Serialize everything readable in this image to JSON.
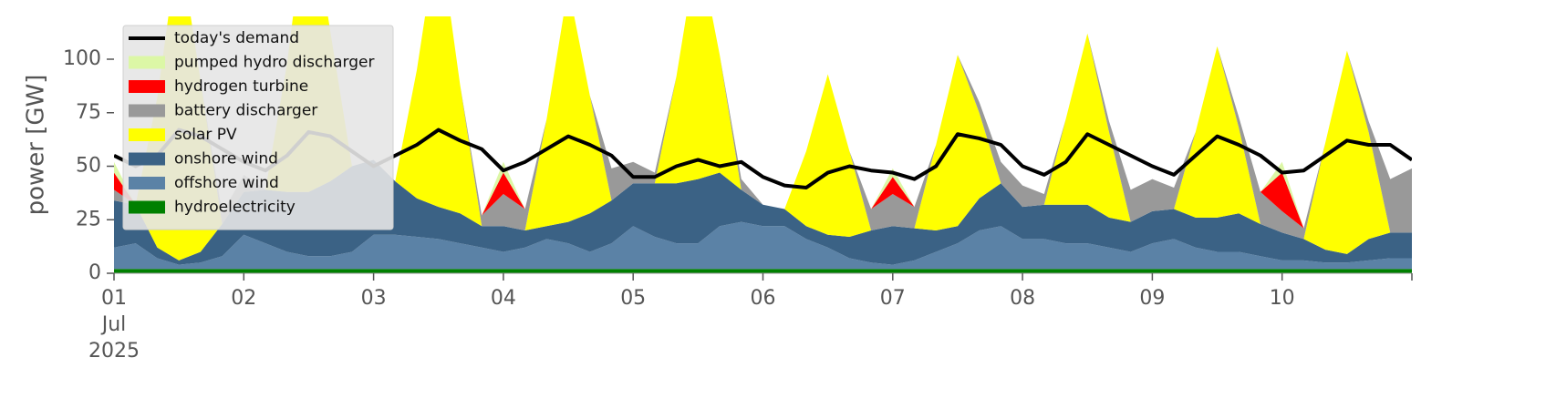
{
  "chart_data": {
    "type": "area",
    "ylabel": "power [GW]",
    "x": [
      0,
      4,
      8,
      12,
      16,
      20,
      24,
      28,
      32,
      36,
      40,
      44,
      48,
      52,
      56,
      60,
      64,
      68,
      72,
      76,
      80,
      84,
      88,
      92,
      96,
      100,
      104,
      108,
      112,
      116,
      120,
      124,
      128,
      132,
      136,
      140,
      144,
      148,
      152,
      156,
      160,
      164,
      168,
      172,
      176,
      180,
      184,
      188,
      192,
      196,
      200,
      204,
      208,
      212,
      216,
      220,
      224,
      228,
      232,
      236,
      240
    ],
    "xlim": [
      0,
      240
    ],
    "xticks": [
      {
        "value": 0,
        "label": "01\nJul\n2025"
      },
      {
        "value": 24,
        "label": "02"
      },
      {
        "value": 48,
        "label": "03"
      },
      {
        "value": 72,
        "label": "04"
      },
      {
        "value": 96,
        "label": "05"
      },
      {
        "value": 120,
        "label": "06"
      },
      {
        "value": 144,
        "label": "07"
      },
      {
        "value": 168,
        "label": "08"
      },
      {
        "value": 192,
        "label": "09"
      },
      {
        "value": 216,
        "label": "10"
      },
      {
        "value": 240,
        "label": ""
      }
    ],
    "ylim": [
      0,
      120
    ],
    "yticks": [
      0,
      25,
      50,
      75,
      100
    ],
    "legend": "upper left",
    "series": [
      {
        "name": "today's demand",
        "type": "line",
        "color": "#000000",
        "values": [
          55,
          50,
          55,
          67,
          64,
          58,
          52,
          48,
          55,
          66,
          64,
          57,
          50,
          55,
          60,
          67,
          62,
          58,
          48,
          52,
          58,
          64,
          60,
          55,
          45,
          45,
          50,
          53,
          50,
          52,
          45,
          41,
          40,
          47,
          50,
          48,
          47,
          44,
          50,
          65,
          63,
          60,
          50,
          46,
          52,
          65,
          60,
          55,
          50,
          46,
          55,
          64,
          60,
          55,
          47,
          48,
          55,
          62,
          60,
          60,
          53
        ]
      },
      {
        "name": "pumped hydro discharger",
        "color": "#dcf7a6",
        "values": [
          5,
          0,
          0,
          0,
          0,
          0,
          0,
          0,
          0,
          0,
          0,
          0,
          0,
          0,
          0,
          0,
          0,
          0,
          5,
          0,
          0,
          0,
          0,
          0,
          0,
          0,
          0,
          0,
          0,
          0,
          0,
          0,
          0,
          0,
          0,
          0,
          4,
          0,
          0,
          0,
          0,
          0,
          0,
          0,
          0,
          0,
          0,
          0,
          0,
          0,
          0,
          0,
          0,
          0,
          5,
          0,
          0,
          0,
          0,
          0,
          0
        ]
      },
      {
        "name": "hydrogen turbine",
        "color": "#ff0000",
        "values": [
          8,
          0,
          0,
          0,
          0,
          0,
          0,
          0,
          0,
          0,
          0,
          0,
          0,
          0,
          0,
          0,
          0,
          0,
          10,
          0,
          0,
          0,
          0,
          0,
          0,
          0,
          0,
          0,
          0,
          0,
          0,
          0,
          0,
          0,
          0,
          0,
          8,
          0,
          0,
          0,
          0,
          0,
          0,
          0,
          0,
          0,
          0,
          0,
          0,
          0,
          0,
          0,
          0,
          0,
          18,
          0,
          0,
          0,
          0,
          0,
          0
        ]
      },
      {
        "name": "battery discharger",
        "color": "#999999",
        "values": [
          5,
          0,
          0,
          0,
          0,
          5,
          8,
          0,
          0,
          0,
          0,
          0,
          0,
          0,
          0,
          0,
          0,
          5,
          15,
          10,
          0,
          0,
          0,
          15,
          10,
          5,
          0,
          0,
          0,
          5,
          0,
          0,
          0,
          0,
          0,
          10,
          15,
          10,
          0,
          0,
          5,
          10,
          10,
          5,
          0,
          0,
          5,
          15,
          15,
          10,
          0,
          0,
          5,
          15,
          10,
          5,
          0,
          0,
          5,
          25,
          30
        ]
      },
      {
        "name": "solar PV",
        "color": "#ffff00",
        "values": [
          0,
          0,
          70,
          150,
          80,
          0,
          0,
          0,
          60,
          140,
          70,
          0,
          0,
          0,
          60,
          130,
          60,
          0,
          0,
          0,
          50,
          110,
          55,
          0,
          0,
          0,
          50,
          110,
          55,
          0,
          0,
          0,
          35,
          75,
          40,
          0,
          0,
          0,
          40,
          80,
          40,
          0,
          0,
          0,
          40,
          80,
          40,
          0,
          0,
          0,
          40,
          80,
          40,
          0,
          0,
          0,
          50,
          95,
          50,
          0,
          0
        ]
      },
      {
        "name": "onshore wind",
        "color": "#3b6285",
        "values": [
          22,
          18,
          5,
          2,
          5,
          15,
          20,
          25,
          28,
          30,
          35,
          40,
          35,
          25,
          18,
          15,
          14,
          10,
          12,
          8,
          6,
          10,
          18,
          20,
          20,
          25,
          28,
          30,
          25,
          15,
          10,
          8,
          6,
          6,
          10,
          15,
          18,
          15,
          10,
          8,
          15,
          20,
          15,
          16,
          18,
          18,
          14,
          14,
          15,
          14,
          14,
          16,
          18,
          15,
          13,
          10,
          6,
          4,
          10,
          12,
          12
        ]
      },
      {
        "name": "offshore wind",
        "color": "#5b82a6",
        "values": [
          10,
          12,
          5,
          2,
          3,
          6,
          16,
          12,
          8,
          6,
          6,
          8,
          16,
          16,
          15,
          14,
          12,
          10,
          8,
          10,
          14,
          12,
          8,
          12,
          20,
          15,
          12,
          12,
          20,
          22,
          20,
          20,
          14,
          10,
          5,
          3,
          2,
          4,
          8,
          12,
          18,
          20,
          14,
          14,
          12,
          12,
          10,
          8,
          12,
          14,
          10,
          8,
          8,
          6,
          4,
          4,
          3,
          3,
          4,
          5,
          5
        ]
      },
      {
        "name": "hydroelectricity",
        "color": "#008000",
        "values": [
          2,
          2,
          2,
          2,
          2,
          2,
          2,
          2,
          2,
          2,
          2,
          2,
          2,
          2,
          2,
          2,
          2,
          2,
          2,
          2,
          2,
          2,
          2,
          2,
          2,
          2,
          2,
          2,
          2,
          2,
          2,
          2,
          2,
          2,
          2,
          2,
          2,
          2,
          2,
          2,
          2,
          2,
          2,
          2,
          2,
          2,
          2,
          2,
          2,
          2,
          2,
          2,
          2,
          2,
          2,
          2,
          2,
          2,
          2,
          2,
          2
        ]
      }
    ]
  }
}
